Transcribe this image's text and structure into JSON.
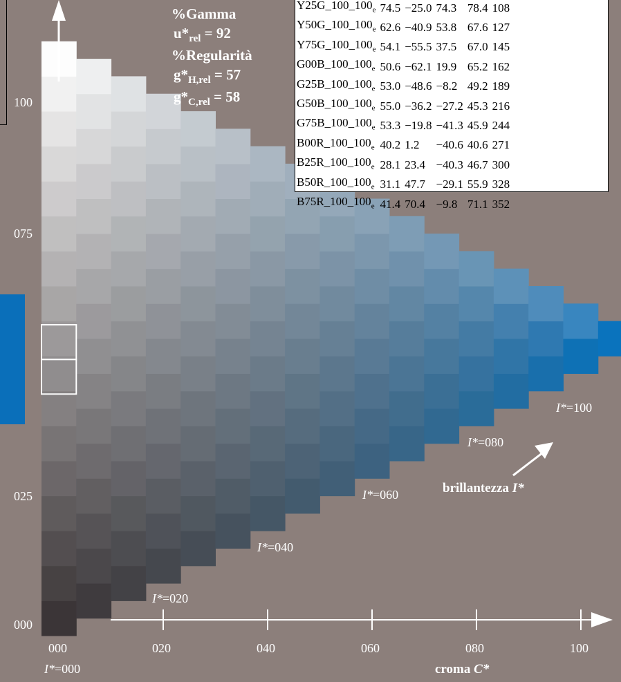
{
  "title_block": {
    "line1": "%Gamma",
    "line2_main": "u*",
    "line2_sub": "rel",
    "line2_value": " = 92",
    "line3": "%Regularità",
    "line4_main": "g*",
    "line4_sub": "H,rel",
    "line4_value": " = 57",
    "line5_main": "g*",
    "line5_sub": "C,rel",
    "line5_value": " = 58"
  },
  "y_tick_labels": [
    "100",
    "075",
    "025",
    "000"
  ],
  "x_tick_labels": [
    "000",
    "020",
    "040",
    "060",
    "080",
    "100"
  ],
  "x_axis_label": "croma ",
  "x_axis_symbol": "C*",
  "brightness_label": "brillantezza ",
  "brightness_symbol": "I*",
  "iso_labels": [
    {
      "symbol": "I*",
      "value": "=000"
    },
    {
      "symbol": "I*",
      "value": "=020"
    },
    {
      "symbol": "I*",
      "value": "=040"
    },
    {
      "symbol": "I*",
      "value": "=060"
    },
    {
      "symbol": "I*",
      "value": "=080"
    },
    {
      "symbol": "I*",
      "value": "=100"
    }
  ],
  "table": {
    "rows": [
      {
        "name": "Y25G_100_100",
        "sub": "e",
        "L": "74.5",
        "a": "−25.0",
        "b": "74.3",
        "C": "78.4",
        "h": "108"
      },
      {
        "name": "Y50G_100_100",
        "sub": "e",
        "L": "62.6",
        "a": "−40.9",
        "b": "53.8",
        "C": "67.6",
        "h": "127"
      },
      {
        "name": "Y75G_100_100",
        "sub": "e",
        "L": "54.1",
        "a": "−55.5",
        "b": "37.5",
        "C": "67.0",
        "h": "145"
      },
      {
        "name": "G00B_100_100",
        "sub": "e",
        "L": "50.6",
        "a": "−62.1",
        "b": "19.9",
        "C": "65.2",
        "h": "162"
      },
      {
        "name": "G25B_100_100",
        "sub": "e",
        "L": "53.0",
        "a": "−48.6",
        "b": "−8.2",
        "C": "49.2",
        "h": "189"
      },
      {
        "name": "G50B_100_100",
        "sub": "e",
        "L": "55.0",
        "a": "−36.2",
        "b": "−27.2",
        "C": "45.3",
        "h": "216"
      },
      {
        "name": "G75B_100_100",
        "sub": "e",
        "L": "53.3",
        "a": "−19.8",
        "b": "−41.3",
        "C": "45.9",
        "h": "244"
      },
      {
        "name": "B00R_100_100",
        "sub": "e",
        "L": "40.2",
        "a": "1.2",
        "b": "−40.6",
        "C": "40.6",
        "h": "271"
      },
      {
        "name": "B25R_100_100",
        "sub": "e",
        "L": "28.1",
        "a": "23.4",
        "b": "−40.3",
        "C": "46.7",
        "h": "300"
      },
      {
        "name": "B50R_100_100",
        "sub": "e",
        "L": "31.1",
        "a": "47.7",
        "b": "−29.1",
        "C": "55.9",
        "h": "328"
      },
      {
        "name": "B75R_100_100",
        "sub": "e",
        "L": "41.4",
        "a": "70.4",
        "b": "−9.8",
        "C": "71.1",
        "h": "352"
      }
    ]
  },
  "colors": {
    "background": "#8c7f7b",
    "grey_top": "#fdfdfd",
    "grey_bottom": "#3b3537",
    "hue_full": "#0a73bd",
    "hue_mid": "#7f8fb0",
    "black_tint": "#2a3d4a",
    "marker_bar": "#0a6fba"
  },
  "grid": {
    "steps": 16,
    "grey_steps": 17
  }
}
